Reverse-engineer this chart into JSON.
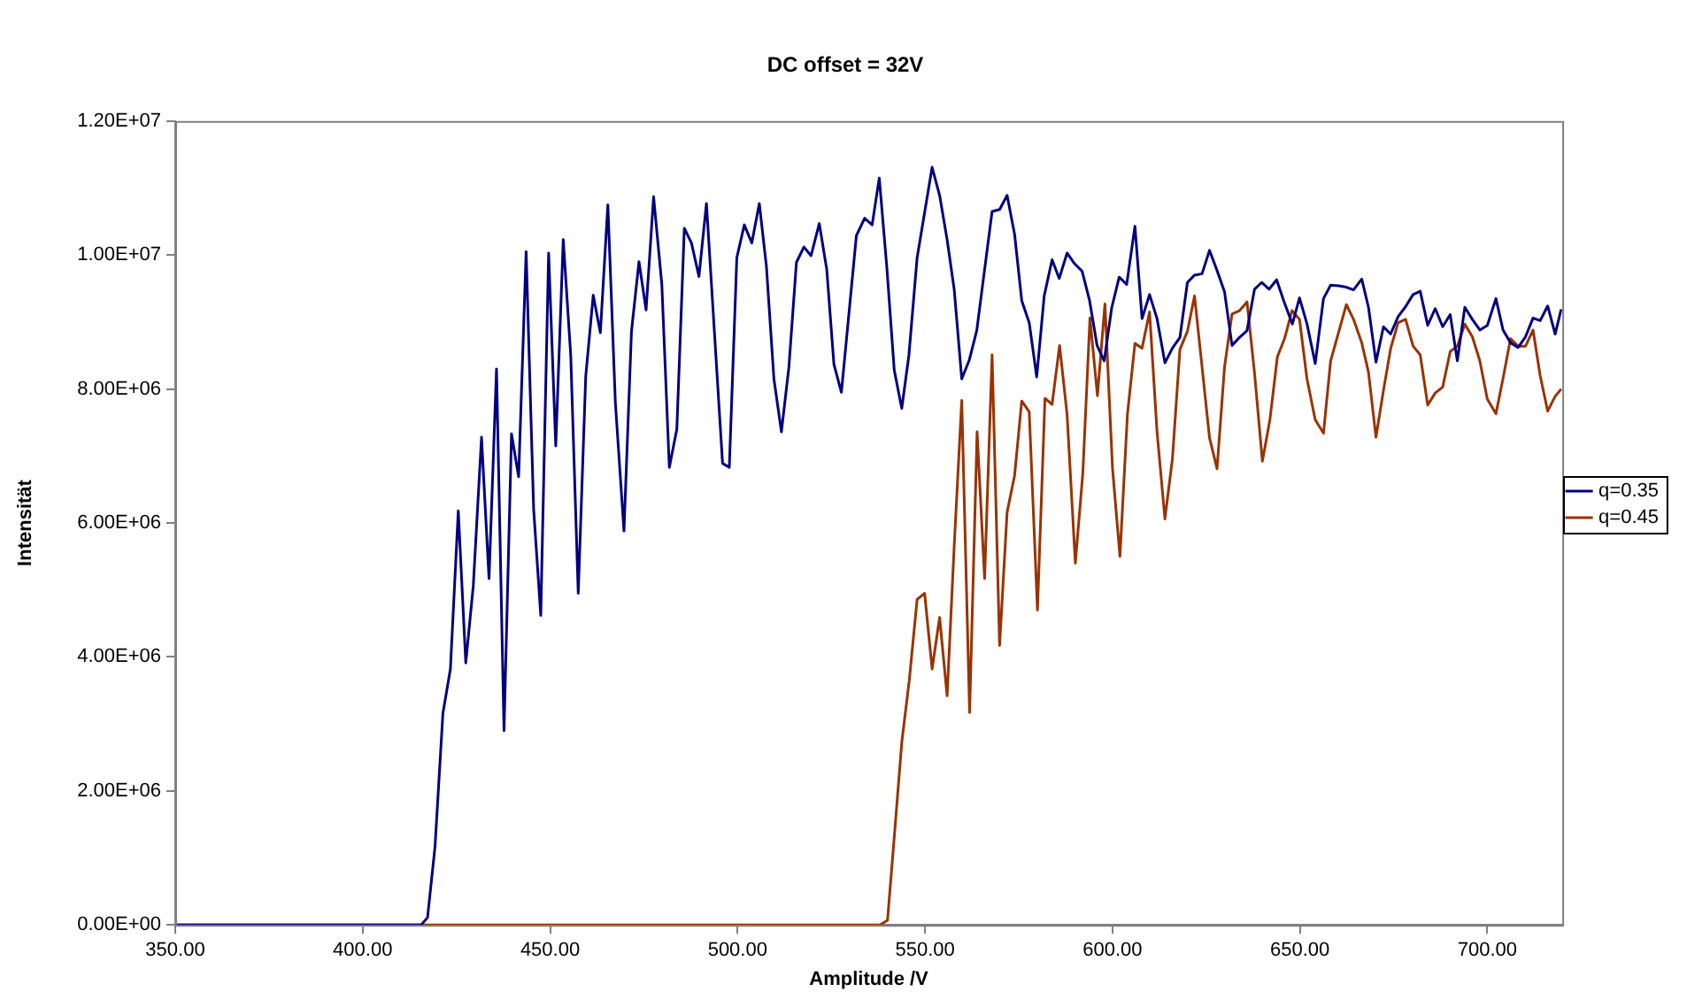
{
  "chart_data": {
    "type": "line",
    "title": "DC offset = 32V",
    "xlabel": "Amplitude /V",
    "ylabel": "Intensität",
    "xlim": [
      350,
      720
    ],
    "xticks": [
      {
        "value": 350,
        "label": "350.00"
      },
      {
        "value": 400,
        "label": "400.00"
      },
      {
        "value": 450,
        "label": "450.00"
      },
      {
        "value": 500,
        "label": "500.00"
      },
      {
        "value": 550,
        "label": "550.00"
      },
      {
        "value": 600,
        "label": "600.00"
      },
      {
        "value": 650,
        "label": "650.00"
      },
      {
        "value": 700,
        "label": "700.00"
      }
    ],
    "ylim": [
      0,
      12000000
    ],
    "yticks": [
      {
        "value": 0,
        "label": "0.00E+00"
      },
      {
        "value": 2000000,
        "label": "2.00E+06"
      },
      {
        "value": 4000000,
        "label": "4.00E+06"
      },
      {
        "value": 6000000,
        "label": "6.00E+06"
      },
      {
        "value": 8000000,
        "label": "8.00E+06"
      },
      {
        "value": 10000000,
        "label": "1.00E+07"
      },
      {
        "value": 12000000,
        "label": "1.20E+07"
      }
    ],
    "grid": false,
    "legend": "right",
    "marker": "none",
    "line_style": "solid",
    "series": [
      {
        "name": "q=0.35",
        "color": "#000080",
        "x": [
          350,
          415.6,
          417.3,
          419.3,
          421.4,
          423.4,
          425.5,
          427.5,
          429.5,
          431.7,
          433.7,
          435.7,
          437.7,
          439.7,
          441.6,
          443.6,
          445.6,
          447.5,
          449.6,
          451.5,
          453.5,
          455.5,
          457.5,
          459.5,
          461.5,
          463.4,
          465.4,
          467.4,
          469.7,
          471.7,
          473.7,
          475.6,
          477.6,
          479.8,
          481.8,
          483.8,
          485.8,
          487.7,
          489.7,
          491.7,
          496,
          497.8,
          499.8,
          501.8,
          503.8,
          505.8,
          507.7,
          509.7,
          511.7,
          513.7,
          515.7,
          517.7,
          519.6,
          521.8,
          523.8,
          525.7,
          527.7,
          531.7,
          533.9,
          535.9,
          537.8,
          539.8,
          541.8,
          543.8,
          545.7,
          547.9,
          551.9,
          553.9,
          555.9,
          557.8,
          559.8,
          561.8,
          563.8,
          565.8,
          567.9,
          569.9,
          571.9,
          573.9,
          575.8,
          577.8,
          579.8,
          581.8,
          583.9,
          585.8,
          587.9,
          589.9,
          591.9,
          593.9,
          595.9,
          597.8,
          599.8,
          601.8,
          603.8,
          606,
          607.9,
          609.9,
          611.9,
          614,
          616,
          618,
          620,
          621.9,
          623.9,
          625.9,
          627.9,
          629.9,
          631.9,
          633.9,
          635.9,
          637.9,
          639.8,
          641.8,
          643.8,
          645.8,
          648,
          649.9,
          651.9,
          654.1,
          656.3,
          658.2,
          660.4,
          662.4,
          664.3,
          666.5,
          668.3,
          670.3,
          672.3,
          674.2,
          676.2,
          678.2,
          680.2,
          682.1,
          684.1,
          686.1,
          688.1,
          690.1,
          692,
          694,
          696,
          698,
          700,
          702.3,
          704.2,
          706.2,
          708.2,
          710.2,
          712.2,
          714.1,
          716.1,
          718.1,
          719.7
        ],
        "values": [
          0,
          0,
          110000,
          1170000,
          3160000,
          3820000,
          6180000,
          3910000,
          5060000,
          7280000,
          5170000,
          8300000,
          2900000,
          7330000,
          6690000,
          10050000,
          6210000,
          4620000,
          10030000,
          7150000,
          10230000,
          8500000,
          4950000,
          8190000,
          9400000,
          8840000,
          10750000,
          7800000,
          5880000,
          8860000,
          9900000,
          9180000,
          10870000,
          9560000,
          6830000,
          7400000,
          10400000,
          10180000,
          9680000,
          10770000,
          6890000,
          6830000,
          9960000,
          10450000,
          10180000,
          10770000,
          9830000,
          8150000,
          7360000,
          8330000,
          9890000,
          10120000,
          9990000,
          10470000,
          9780000,
          8370000,
          7950000,
          10290000,
          10550000,
          10450000,
          11150000,
          9830000,
          8280000,
          7710000,
          8500000,
          9960000,
          11310000,
          10890000,
          10230000,
          9480000,
          8150000,
          8430000,
          8870000,
          9740000,
          10650000,
          10680000,
          10890000,
          10310000,
          9320000,
          8990000,
          8180000,
          9390000,
          9930000,
          9650000,
          10030000,
          9870000,
          9760000,
          9320000,
          8650000,
          8420000,
          9210000,
          9670000,
          9560000,
          10430000,
          9050000,
          9410000,
          9050000,
          8390000,
          8610000,
          8770000,
          9590000,
          9700000,
          9720000,
          10070000,
          9770000,
          9450000,
          8650000,
          8770000,
          8870000,
          9490000,
          9590000,
          9490000,
          9630000,
          9300000,
          8970000,
          9360000,
          8970000,
          8380000,
          9350000,
          9550000,
          9540000,
          9520000,
          9480000,
          9640000,
          9220000,
          8400000,
          8930000,
          8820000,
          9080000,
          9230000,
          9410000,
          9460000,
          8950000,
          9200000,
          8930000,
          9110000,
          8420000,
          9220000,
          9040000,
          8880000,
          8950000,
          9350000,
          8880000,
          8690000,
          8620000,
          8780000,
          9060000,
          9020000,
          9240000,
          8820000,
          9190000
        ]
      },
      {
        "name": "q=0.45",
        "color": "#993300",
        "x": [
          350,
          538,
          540,
          541.6,
          543.8,
          545.8,
          547.9,
          549.9,
          551.9,
          553.9,
          555.9,
          557.8,
          559.8,
          561.9,
          563.9,
          565.9,
          567.9,
          569.9,
          571.9,
          573.9,
          575.8,
          577.8,
          580,
          582,
          583.9,
          585.9,
          587.9,
          590.1,
          592.1,
          594,
          596,
          598,
          600,
          602,
          604,
          606,
          607.9,
          609.9,
          611.9,
          614,
          616,
          618,
          620,
          621.9,
          623.9,
          625.9,
          627.9,
          629.9,
          631.9,
          633.9,
          635.9,
          637.9,
          640,
          642,
          644,
          645.9,
          647.9,
          649.9,
          651.9,
          654.1,
          656.3,
          658.2,
          660.4,
          662.4,
          664.3,
          666.5,
          668.3,
          670.3,
          672.3,
          674.2,
          676.2,
          678.2,
          680.2,
          682.1,
          684.1,
          686.1,
          688.1,
          690.1,
          692,
          694,
          696,
          698,
          700,
          702.3,
          704.2,
          706.2,
          708.2,
          710.2,
          712.2,
          714.1,
          716.1,
          718.1,
          719.7
        ],
        "values": [
          0,
          0,
          70000,
          1170000,
          2720000,
          3650000,
          4860000,
          4950000,
          3820000,
          4590000,
          3420000,
          5670000,
          7830000,
          3170000,
          7360000,
          5170000,
          8510000,
          4170000,
          6160000,
          6710000,
          7820000,
          7660000,
          4700000,
          7860000,
          7770000,
          8650000,
          7620000,
          5400000,
          6740000,
          9060000,
          7900000,
          9270000,
          6830000,
          5500000,
          7620000,
          8680000,
          8610000,
          9150000,
          7360000,
          6060000,
          6960000,
          8590000,
          8860000,
          9390000,
          8330000,
          7270000,
          6810000,
          8330000,
          9120000,
          9170000,
          9300000,
          8240000,
          6920000,
          7540000,
          8480000,
          8750000,
          9170000,
          9040000,
          8150000,
          7540000,
          7340000,
          8420000,
          8860000,
          9260000,
          9040000,
          8690000,
          8250000,
          7280000,
          7980000,
          8600000,
          8990000,
          9040000,
          8640000,
          8510000,
          7760000,
          7940000,
          8030000,
          8560000,
          8640000,
          8970000,
          8780000,
          8420000,
          7850000,
          7630000,
          8160000,
          8750000,
          8640000,
          8640000,
          8880000,
          8200000,
          7670000,
          7890000,
          8000000
        ]
      }
    ]
  }
}
